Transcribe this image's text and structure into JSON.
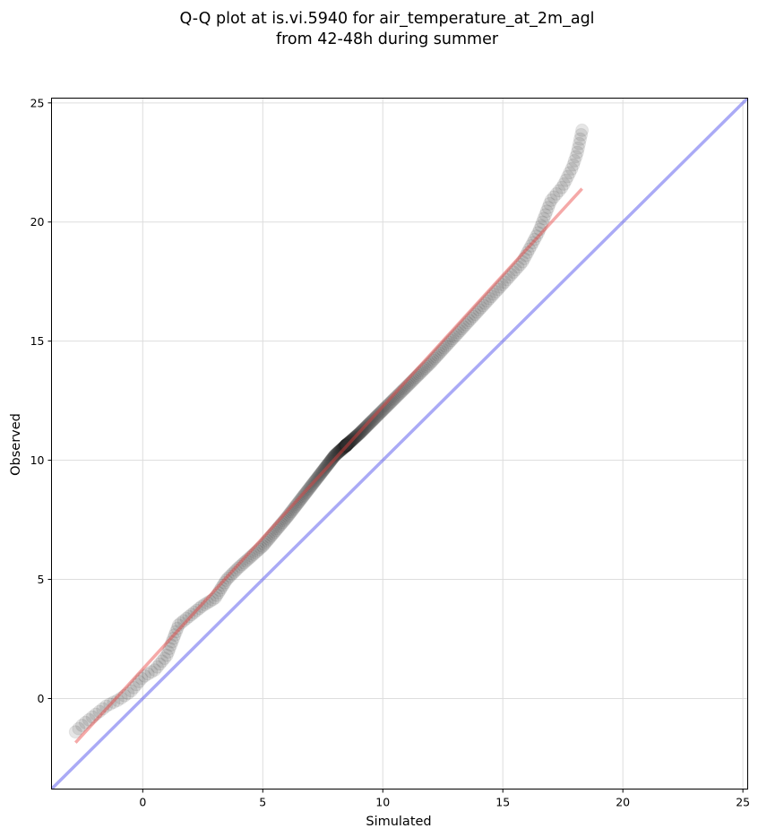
{
  "chart_data": {
    "type": "scatter",
    "title_lines": [
      "Q-Q plot at is.vi.5940 for air_temperature_at_2m_agl",
      "from 42-48h during summer"
    ],
    "xlabel": "Simulated",
    "ylabel": "Observed",
    "xlim": [
      -3.8,
      25.2
    ],
    "ylim": [
      -3.8,
      25.2
    ],
    "xticks": [
      0,
      5,
      10,
      15,
      20,
      25
    ],
    "yticks": [
      0,
      5,
      10,
      15,
      20,
      25
    ],
    "grid": true,
    "quantile_anchors": {
      "x": [
        -2.8,
        -2.5,
        -2.0,
        -1.5,
        -1.0,
        -0.5,
        0.0,
        0.5,
        1.0,
        1.5,
        2.0,
        2.5,
        3.0,
        3.5,
        4.0,
        5.0,
        6.0,
        7.0,
        8.0,
        9.0,
        10.0,
        11.0,
        12.0,
        13.0,
        14.0,
        15.0,
        15.8,
        16.5,
        17.0,
        17.5,
        17.9,
        18.1,
        18.3
      ],
      "y": [
        -1.4,
        -1.1,
        -0.7,
        -0.3,
        -0.05,
        0.3,
        0.9,
        1.2,
        1.8,
        3.1,
        3.5,
        3.9,
        4.2,
        5.0,
        5.5,
        6.4,
        7.6,
        8.9,
        10.2,
        11.1,
        12.1,
        13.1,
        14.1,
        15.2,
        16.3,
        17.4,
        18.3,
        19.6,
        20.9,
        21.5,
        22.3,
        22.9,
        23.85
      ]
    },
    "n_points": 420,
    "series": [
      {
        "role": "quantiles",
        "color": "#333333"
      },
      {
        "role": "fit",
        "color": "#e8403f",
        "x": [
          -2.8,
          18.3
        ],
        "y": [
          -1.85,
          21.4
        ]
      },
      {
        "role": "identity",
        "color": "#5555ee",
        "x": [
          -3.8,
          25.2
        ],
        "y": [
          -3.8,
          25.2
        ]
      }
    ]
  }
}
